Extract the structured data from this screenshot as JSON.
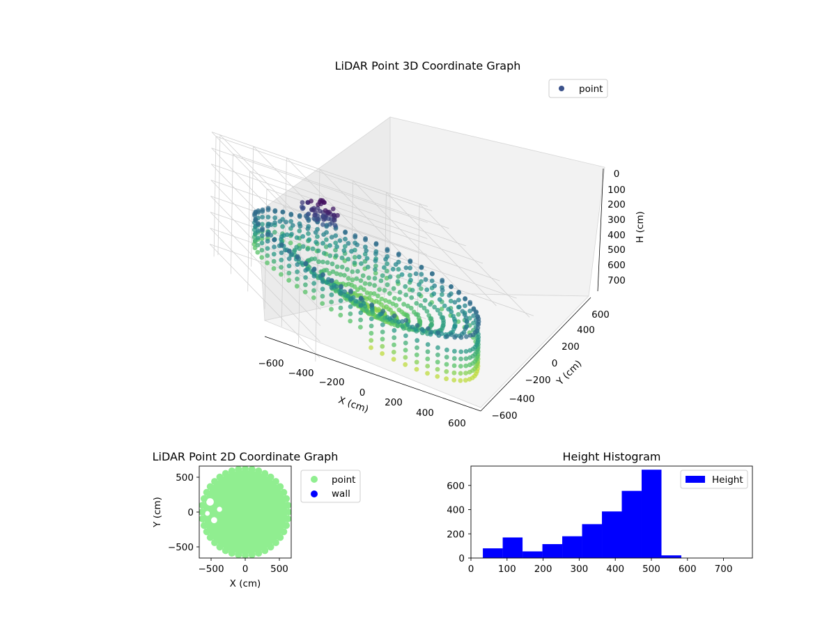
{
  "colors": {
    "scatter2d_point": "#90ee90",
    "scatter2d_wall": "#0000ff",
    "hist_bar": "#0000ff",
    "legend_point3d": "#3b528b",
    "viridis": [
      "#440154",
      "#3b528b",
      "#21918c",
      "#5ec962",
      "#fde725"
    ]
  },
  "chart_data": [
    {
      "type": "scatter3d",
      "title": "LiDAR Point 3D Coordinate Graph",
      "xlabel": "X (cm)",
      "ylabel": "Y (cm)",
      "zlabel": "H (cm)",
      "xlim": [
        -650,
        650
      ],
      "ylim": [
        -650,
        650
      ],
      "zlim": [
        0,
        750
      ],
      "z_inverted": true,
      "x_ticks": [
        "−600",
        "−400",
        "−200",
        "0",
        "200",
        "400",
        "600"
      ],
      "y_ticks": [
        "−600",
        "−400",
        "−200",
        "0",
        "200",
        "400",
        "600"
      ],
      "z_ticks": [
        "0",
        "100",
        "200",
        "300",
        "400",
        "500",
        "600",
        "700"
      ],
      "legend": [
        "point"
      ],
      "legend_position": "top-right",
      "colormap": "viridis",
      "description": "points arranged in radial rays on a roughly circular wall of radius ~600 cm, heights mostly 300-550 cm, a dense cluster near height ~200 cm at the back"
    },
    {
      "type": "scatter",
      "title": "LiDAR Point 2D Coordinate Graph",
      "xlabel": "X (cm)",
      "ylabel": "Y (cm)",
      "xlim": [
        -680,
        680
      ],
      "ylim": [
        -680,
        680
      ],
      "x_ticks": [
        "−500",
        "0",
        "500"
      ],
      "y_ticks": [
        "−500",
        "0",
        "500"
      ],
      "series": [
        {
          "name": "point",
          "description": "filled disc of radius ~620 cm with notches on the left"
        },
        {
          "name": "wall",
          "description": "no visible points"
        }
      ],
      "legend_position": "outside-right"
    },
    {
      "type": "bar",
      "title": "Height Histogram",
      "xlim": [
        0,
        780
      ],
      "ylim": [
        0,
        760
      ],
      "x_ticks": [
        "0",
        "100",
        "200",
        "300",
        "400",
        "500",
        "600",
        "700"
      ],
      "y_ticks": [
        "0",
        "200",
        "400",
        "600"
      ],
      "bins": [
        {
          "start": 33,
          "end": 88,
          "count": 80
        },
        {
          "start": 88,
          "end": 143,
          "count": 170
        },
        {
          "start": 143,
          "end": 198,
          "count": 55
        },
        {
          "start": 198,
          "end": 253,
          "count": 115
        },
        {
          "start": 253,
          "end": 308,
          "count": 180
        },
        {
          "start": 308,
          "end": 363,
          "count": 280
        },
        {
          "start": 363,
          "end": 418,
          "count": 385
        },
        {
          "start": 418,
          "end": 473,
          "count": 555
        },
        {
          "start": 473,
          "end": 528,
          "count": 730
        },
        {
          "start": 528,
          "end": 583,
          "count": 22
        }
      ],
      "legend": [
        "Height"
      ],
      "legend_position": "top-right"
    }
  ]
}
